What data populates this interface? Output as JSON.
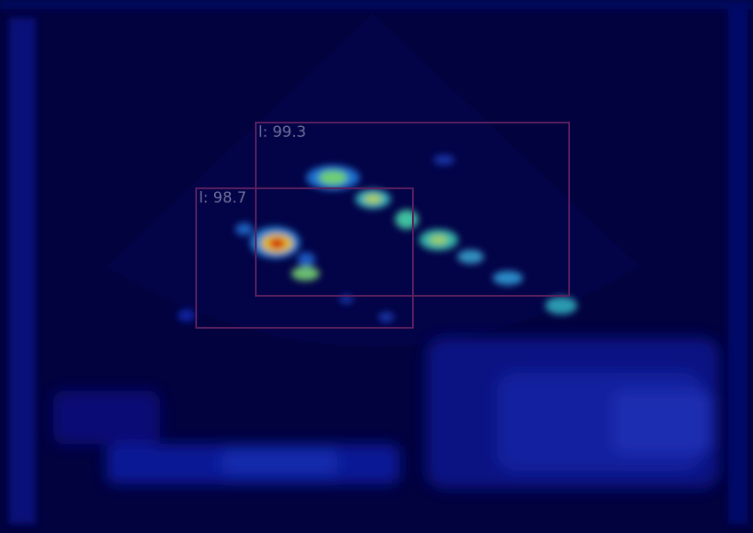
{
  "detections": [
    {
      "label": "l: 99.3",
      "box_color": "#5a1f5e"
    },
    {
      "label": "l: 98.7",
      "box_color": "#5a1f5e"
    }
  ],
  "colors": {
    "background": "#02023f",
    "heat_low": "#0a1aa0",
    "heat_mid": "#19b0b0",
    "heat_high": "#e0c020",
    "heat_peak": "#d01010"
  }
}
